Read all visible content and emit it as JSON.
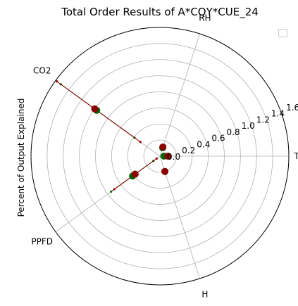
{
  "chart_data": {
    "type": "polar-scatter",
    "title": "Total Order Results of A*CQY*CUE_24",
    "ylabel": "Percent of Output Explained",
    "theta_labels": [
      "TEMP",
      "RH",
      "CO2",
      "PPFD",
      "H"
    ],
    "theta_degrees": [
      0,
      72,
      144,
      216,
      288
    ],
    "rlim": [
      0,
      1.6
    ],
    "r_ticks": [
      "0.0",
      "0.2",
      "0.4",
      "0.6",
      "0.8",
      "1.0",
      "1.2",
      "1.4",
      "1.6"
    ],
    "grid": true,
    "legend": "top-right",
    "series": [
      {
        "color": "#006400",
        "points": [
          {
            "variable": "TEMP",
            "value": 0.05
          },
          {
            "variable": "RH",
            "value": 0.11
          },
          {
            "variable": "CO2",
            "value": 0.97
          },
          {
            "variable": "PPFD",
            "value": 0.42
          },
          {
            "variable": "H",
            "value": 0.2
          }
        ],
        "errors": [
          {
            "variable": "TEMP",
            "low": 0.04,
            "high": 0.06
          },
          {
            "variable": "RH",
            "low": 0.09,
            "high": 0.13
          },
          {
            "variable": "CO2",
            "low": 0.39,
            "high": 1.52
          },
          {
            "variable": "PPFD",
            "low": 0.1,
            "high": 0.75
          },
          {
            "variable": "H",
            "low": 0.18,
            "high": 0.22
          }
        ]
      },
      {
        "color": "#8b0000",
        "points": [
          {
            "variable": "TEMP",
            "value": 0.1
          },
          {
            "variable": "RH",
            "value": 0.12
          },
          {
            "variable": "CO2",
            "value": 1.0
          },
          {
            "variable": "PPFD",
            "value": 0.38
          },
          {
            "variable": "H",
            "value": 0.2
          }
        ],
        "errors": [
          {
            "variable": "TEMP",
            "low": 0.09,
            "high": 0.11
          },
          {
            "variable": "RH",
            "low": 0.1,
            "high": 0.14
          },
          {
            "variable": "CO2",
            "low": 0.3,
            "high": 1.58
          },
          {
            "variable": "PPFD",
            "low": 0.05,
            "high": 0.7
          },
          {
            "variable": "H",
            "low": 0.18,
            "high": 0.22
          }
        ]
      }
    ]
  }
}
